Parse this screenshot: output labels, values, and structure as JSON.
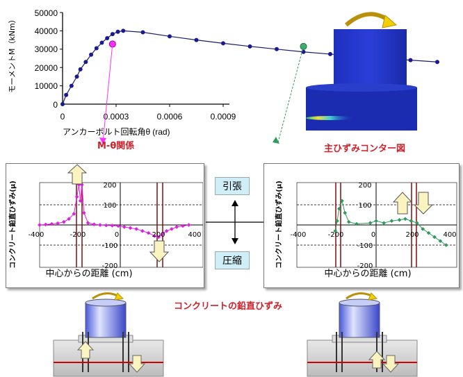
{
  "moment_chart": {
    "ylabel": "モーメントM（kNm）",
    "xlabel_prefix": "アンカーボルト回転角θ",
    "xlabel_unit": "(rad)",
    "yticks": [
      "50000",
      "40000",
      "30000",
      "20000",
      "10000",
      "0"
    ],
    "xticks": [
      "0",
      "0.0003",
      "0.0006",
      "0.0009"
    ],
    "points": [
      [
        0,
        0
      ],
      [
        2e-05,
        5000
      ],
      [
        5e-05,
        10000
      ],
      [
        8e-05,
        15000
      ],
      [
        0.0001,
        19000
      ],
      [
        0.00013,
        23000
      ],
      [
        0.00016,
        27000
      ],
      [
        0.00019,
        30500
      ],
      [
        0.00022,
        33500
      ],
      [
        0.00025,
        36000
      ],
      [
        0.00028,
        38200
      ],
      [
        0.00031,
        39500
      ],
      [
        0.00034,
        40000
      ],
      [
        0.00045,
        39200
      ],
      [
        0.0006,
        37000
      ],
      [
        0.00075,
        35000
      ],
      [
        0.0009,
        33200
      ],
      [
        0.00105,
        31500
      ],
      [
        0.0012,
        30000
      ],
      [
        0.00135,
        28500
      ],
      [
        0.0015,
        27300
      ],
      [
        0.00165,
        26000
      ],
      [
        0.0018,
        25000
      ],
      [
        0.00195,
        24000
      ],
      [
        0.0021,
        23000
      ]
    ],
    "marker_magenta": [
      0.00028,
      32800
    ],
    "marker_green": [
      0.00135,
      31500
    ]
  },
  "captions": {
    "m_theta": "M-θ関係",
    "contour": "主ひずみコンター図",
    "concrete_strain": "コンクリートの鉛直ひずみ"
  },
  "strain_chart": {
    "ylabel": "コンクリート鉛直ひずみ(μ)",
    "xlabel": "中心からの距離 (cm)",
    "xticks": [
      "-400",
      "-200",
      "0",
      "200",
      "400"
    ],
    "yticks": [
      "200",
      "100",
      "0",
      "-100",
      "-200"
    ]
  },
  "legend": {
    "tension": "引張",
    "compression": "圧縮"
  },
  "colors": {
    "series_left": "#e020e0",
    "series_right": "#2e9a5e",
    "caption_red": "#d0202a",
    "bolt_red": "#8b1a1a"
  },
  "strain_left_points": [
    [
      -400,
      0
    ],
    [
      -370,
      2
    ],
    [
      -340,
      5
    ],
    [
      -310,
      8
    ],
    [
      -280,
      15
    ],
    [
      -255,
      30
    ],
    [
      -230,
      55
    ],
    [
      -215,
      140
    ],
    [
      -205,
      200
    ],
    [
      -198,
      120
    ],
    [
      -190,
      200
    ],
    [
      -180,
      60
    ],
    [
      -160,
      10
    ],
    [
      -130,
      3
    ],
    [
      -100,
      0
    ],
    [
      -70,
      -2
    ],
    [
      -40,
      -3
    ],
    [
      -10,
      -5
    ],
    [
      20,
      -10
    ],
    [
      50,
      -15
    ],
    [
      80,
      -20
    ],
    [
      110,
      -30
    ],
    [
      140,
      -40
    ],
    [
      170,
      -55
    ],
    [
      190,
      -60
    ],
    [
      210,
      -45
    ],
    [
      230,
      -30
    ],
    [
      255,
      -20
    ],
    [
      280,
      -10
    ],
    [
      310,
      -5
    ],
    [
      340,
      0
    ]
  ],
  "strain_right_points": [
    [
      -210,
      -30
    ],
    [
      -200,
      20
    ],
    [
      -190,
      80
    ],
    [
      -175,
      120
    ],
    [
      -160,
      60
    ],
    [
      -140,
      15
    ],
    [
      -100,
      5
    ],
    [
      -30,
      10
    ],
    [
      0,
      20
    ],
    [
      40,
      10
    ],
    [
      80,
      20
    ],
    [
      120,
      25
    ],
    [
      150,
      30
    ],
    [
      180,
      20
    ],
    [
      210,
      10
    ],
    [
      240,
      -20
    ],
    [
      270,
      -40
    ],
    [
      300,
      -60
    ],
    [
      330,
      -80
    ],
    [
      360,
      -100
    ]
  ]
}
